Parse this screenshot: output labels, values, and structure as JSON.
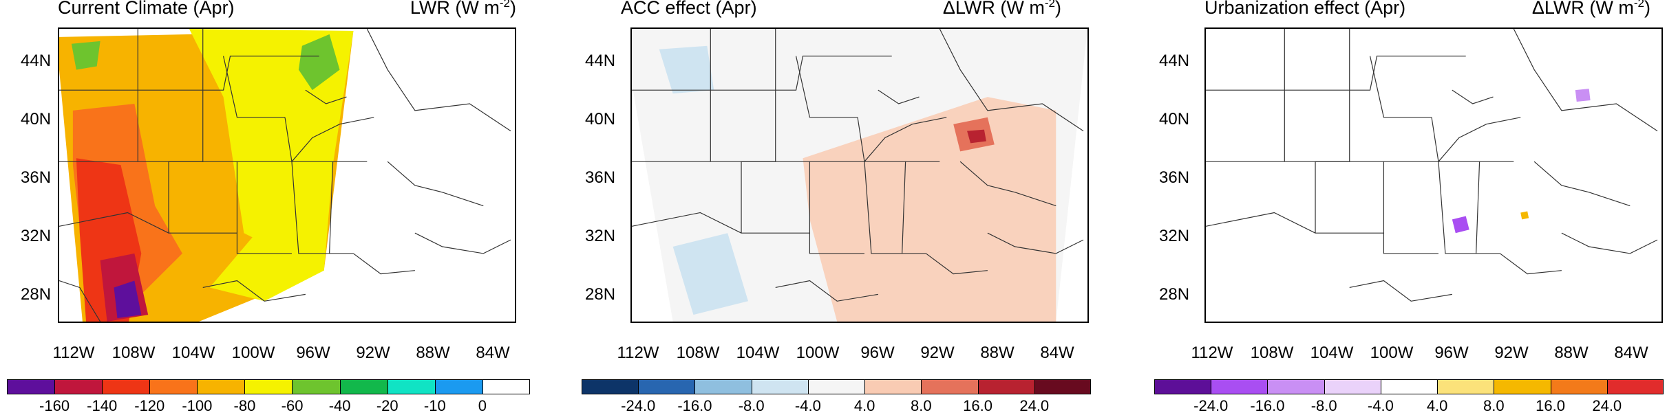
{
  "panels": [
    {
      "title": "Current Climate (Apr)",
      "var_prefix": "LWR (W m",
      "var_sup": "-2",
      "var_suffix": ")",
      "colorbar": {
        "colors": [
          "#5e0f9c",
          "#c0163c",
          "#ee3515",
          "#f9731a",
          "#f7b300",
          "#f5f200",
          "#6ec42e",
          "#12b84b",
          "#10e3c4",
          "#1b9af0",
          "#ffffff"
        ],
        "labels": [
          "-160",
          "-140",
          "-120",
          "-100",
          "-80",
          "-60",
          "-40",
          "-20",
          "-10",
          "0"
        ]
      }
    },
    {
      "title": "ACC effect (Apr)",
      "var_prefix": "ΔLWR (W m",
      "var_sup": "-2",
      "var_suffix": ")",
      "colorbar": {
        "colors": [
          "#0d3468",
          "#2866b0",
          "#8fbfdf",
          "#cfe4f1",
          "#f5f5f5",
          "#f9cbb3",
          "#e5725b",
          "#b82230",
          "#680a1f"
        ],
        "labels": [
          "-24.0",
          "-16.0",
          "-8.0",
          "-4.0",
          "4.0",
          "8.0",
          "16.0",
          "24.0"
        ]
      }
    },
    {
      "title": "Urbanization effect (Apr)",
      "var_prefix": "ΔLWR (W m",
      "var_sup": "-2",
      "var_suffix": ")",
      "colorbar": {
        "colors": [
          "#5d0f98",
          "#a94ef2",
          "#c98ff4",
          "#ead2fa",
          "#ffffff",
          "#fbe27a",
          "#f5b800",
          "#f37a1a",
          "#e12c2c"
        ],
        "labels": [
          "-24.0",
          "-16.0",
          "-8.0",
          "-4.0",
          "4.0",
          "8.0",
          "16.0",
          "24.0"
        ]
      }
    }
  ],
  "lat_labels": [
    "44N",
    "40N",
    "36N",
    "32N",
    "28N"
  ],
  "lon_labels": [
    "112W",
    "108W",
    "104W",
    "100W",
    "96W",
    "92W",
    "88W",
    "84W"
  ],
  "colors": {
    "border": "#000000",
    "state_lines": "#333333",
    "background": "#ffffff"
  }
}
